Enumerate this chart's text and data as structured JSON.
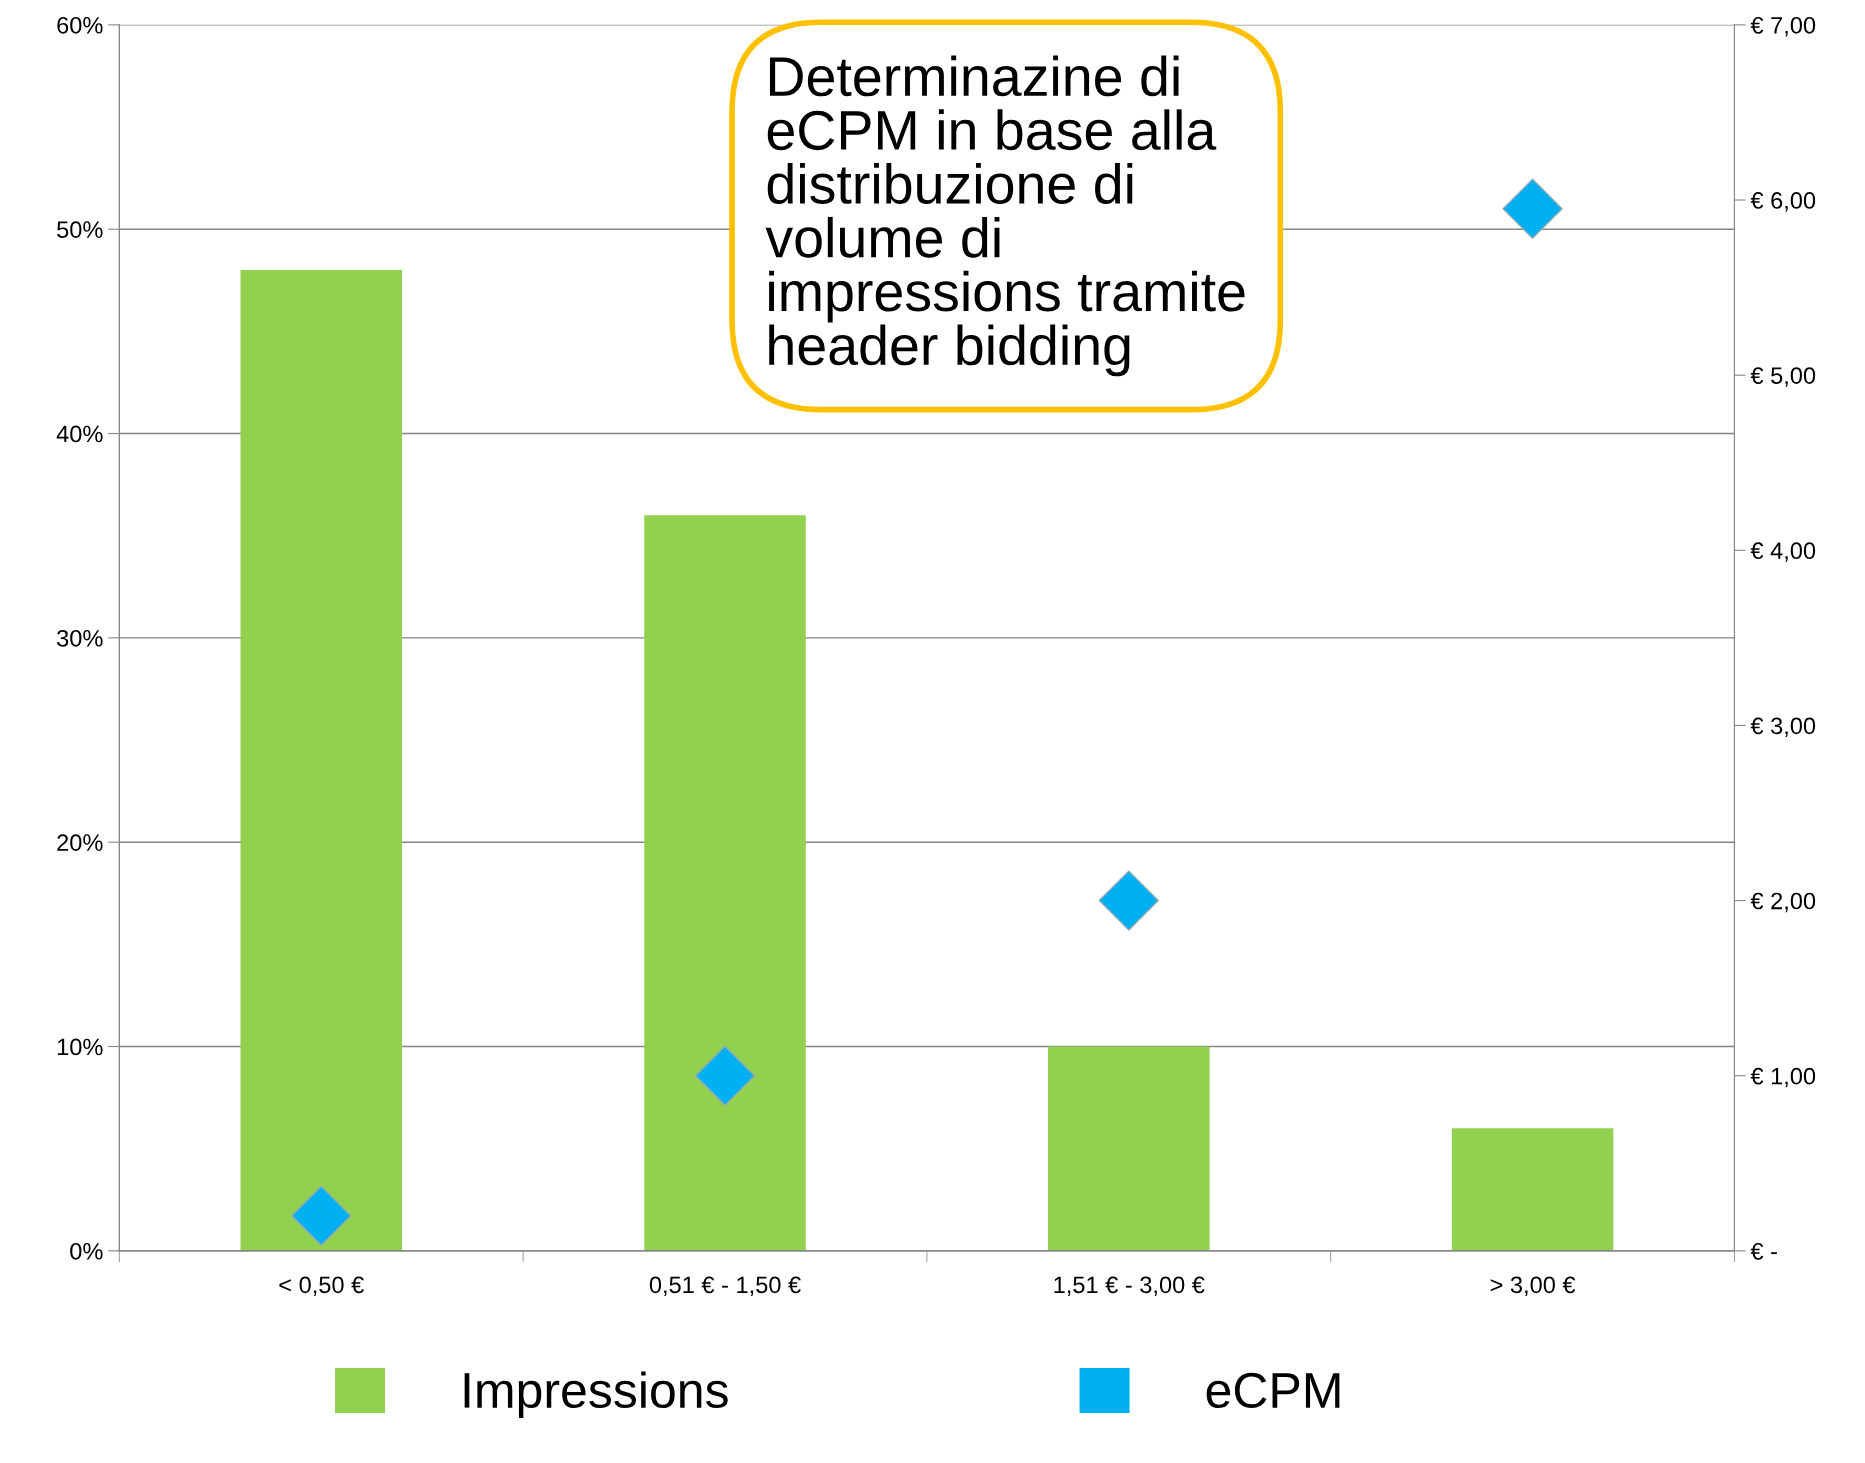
{
  "chart_data": {
    "type": "bar",
    "title": "Determinazine di\neCPM in base alla\ndistribuzione di\nvolume di\nimpressions tramite\nheader bidding",
    "categories": [
      "< 0,50 €",
      "0,51 € - 1,50 €",
      "1,51 € - 3,00 €",
      "> 3,00 €"
    ],
    "series": [
      {
        "name": "Impressions",
        "color": "#92d050",
        "values": [
          48,
          36,
          10,
          6
        ]
      },
      {
        "name": "eCPM",
        "type": "scatter",
        "axis": "y2",
        "marker": "diamond",
        "color": "#00b0f0",
        "values": [
          0.2,
          1.0,
          2.0,
          5.95
        ]
      }
    ],
    "ylim": [
      0,
      60
    ],
    "yticks": [
      {
        "value": 0,
        "label": "0%"
      },
      {
        "value": 10,
        "label": "10%"
      },
      {
        "value": 20,
        "label": "20%"
      },
      {
        "value": 30,
        "label": "30%"
      },
      {
        "value": 40,
        "label": "40%"
      },
      {
        "value": 50,
        "label": "50%"
      },
      {
        "value": 60,
        "label": "60%"
      }
    ],
    "y2lim": [
      0,
      7
    ],
    "y2ticks": [
      {
        "value": 0,
        "label": "€ -"
      },
      {
        "value": 1,
        "label": "€ 1,00"
      },
      {
        "value": 2,
        "label": "€ 2,00"
      },
      {
        "value": 3,
        "label": "€ 3,00"
      },
      {
        "value": 4,
        "label": "€ 4,00"
      },
      {
        "value": 5,
        "label": "€ 5,00"
      },
      {
        "value": 6,
        "label": "€ 6,00"
      },
      {
        "value": 7,
        "label": "€ 7,00"
      }
    ],
    "grid": "y",
    "legend": "bottom"
  }
}
